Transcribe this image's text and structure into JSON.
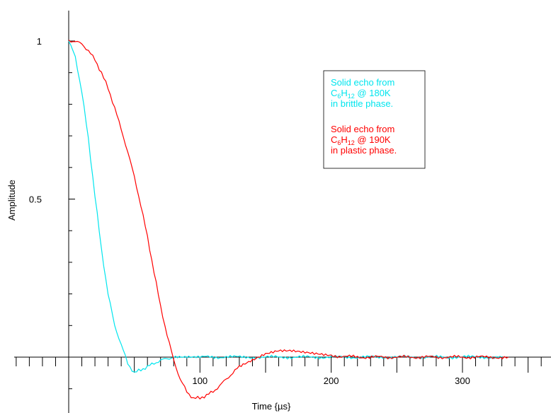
{
  "chart_data": {
    "type": "line",
    "xlabel": "Time {µs}",
    "ylabel": "Amplitude",
    "xlim": [
      -45,
      370
    ],
    "ylim": [
      -0.22,
      1.1
    ],
    "x_ticks": [
      100,
      200,
      300
    ],
    "x_tick_labels": [
      "100",
      "200",
      "300"
    ],
    "y_ticks": [
      0.5,
      1
    ],
    "y_tick_labels": [
      "0.5",
      "1"
    ],
    "grid": false,
    "legend_position": "top-right",
    "legend": [
      {
        "color": "#00e5ee",
        "line1": "Solid echo from",
        "formula": {
          "c": "C",
          "c_sub": "6",
          "h": "H",
          "h_sub": "12"
        },
        "temp": " @ 180K",
        "line3": "in brittle phase."
      },
      {
        "color": "#ff0000",
        "line1": "Solid echo from",
        "formula": {
          "c": "C",
          "c_sub": "6",
          "h": "H",
          "h_sub": "12"
        },
        "temp": " @ 190K",
        "line3": "in plastic phase."
      }
    ],
    "series": [
      {
        "color": "#00e5ee",
        "x": [
          0,
          5,
          10,
          15,
          20,
          25,
          30,
          35,
          40,
          45,
          50,
          55,
          60,
          65,
          70,
          75,
          80,
          90,
          100,
          120,
          150,
          200,
          250,
          300,
          330
        ],
        "y": [
          1.0,
          0.95,
          0.84,
          0.69,
          0.51,
          0.34,
          0.2,
          0.1,
          0.04,
          -0.02,
          -0.05,
          -0.04,
          -0.03,
          -0.02,
          -0.01,
          -0.005,
          0.0,
          0.0,
          0.0,
          0.0,
          0.0,
          0.0,
          0.0,
          0.0,
          0.0
        ]
      },
      {
        "color": "#ff0000",
        "x": [
          0,
          5,
          10,
          15,
          20,
          25,
          30,
          35,
          40,
          45,
          50,
          55,
          60,
          65,
          70,
          75,
          80,
          85,
          90,
          95,
          100,
          105,
          110,
          115,
          120,
          125,
          130,
          140,
          150,
          160,
          170,
          180,
          190,
          200,
          220,
          240,
          260,
          280,
          300,
          320,
          335
        ],
        "y": [
          1.0,
          1.0,
          0.99,
          0.97,
          0.94,
          0.9,
          0.85,
          0.79,
          0.72,
          0.65,
          0.57,
          0.48,
          0.38,
          0.27,
          0.16,
          0.07,
          -0.01,
          -0.07,
          -0.11,
          -0.13,
          -0.13,
          -0.12,
          -0.11,
          -0.09,
          -0.07,
          -0.05,
          -0.03,
          -0.01,
          0.01,
          0.02,
          0.02,
          0.015,
          0.01,
          0.005,
          0.0,
          0.0,
          0.0,
          0.0,
          0.0,
          0.0,
          0.0
        ]
      }
    ]
  }
}
